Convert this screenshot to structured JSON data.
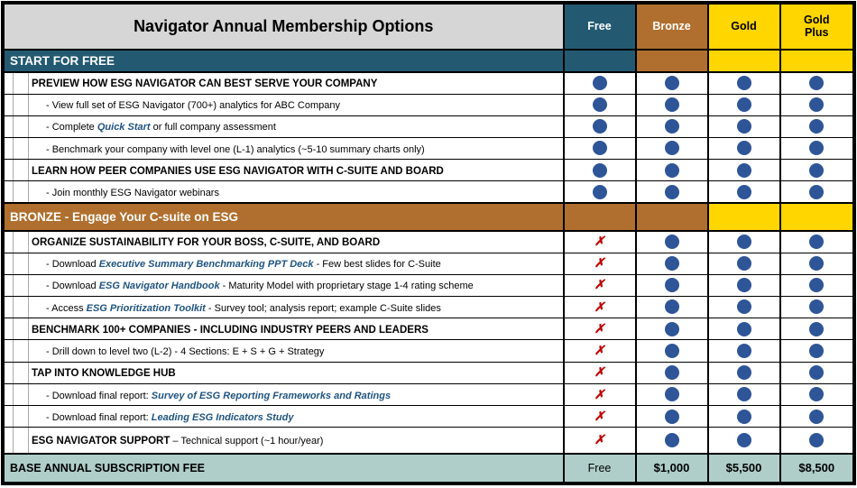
{
  "title": "Navigator Annual Membership Options",
  "colors": {
    "header_gray": "#D6D6D6",
    "teal": "#235A72",
    "bronze": "#B06F2E",
    "gold": "#FFD600",
    "footer_teal": "#AFCECA",
    "dot_blue": "#2E5597",
    "x_red": "#C00000",
    "link_blue": "#1F5380"
  },
  "columns": [
    {
      "label": "Free",
      "bg": "teal",
      "fg": "#FFFFFF"
    },
    {
      "label": "Bronze",
      "bg": "bronze",
      "fg": "#FFFFFF"
    },
    {
      "label": "Gold",
      "bg": "gold",
      "fg": "#000000"
    },
    {
      "label": "Gold Plus",
      "bg": "gold",
      "fg": "#000000"
    }
  ],
  "icons": {
    "included": "dot-circle",
    "excluded_glyph": "✗"
  },
  "rows": [
    {
      "type": "section",
      "label": "START FOR FREE",
      "bg": "teal",
      "cells": [
        "teal",
        "bronze",
        "gold",
        "gold"
      ]
    },
    {
      "type": "item",
      "level": 1,
      "segments": [
        {
          "text": "PREVIEW HOW ESG NAVIGATOR CAN BEST SERVE YOUR COMPANY",
          "style": "bold"
        }
      ],
      "marks": [
        "dot",
        "dot",
        "dot",
        "dot"
      ]
    },
    {
      "type": "item",
      "level": 2,
      "segments": [
        {
          "text": "- View full set of ESG Navigator (700+) analytics for ABC Company",
          "style": "plain"
        }
      ],
      "marks": [
        "dot",
        "dot",
        "dot",
        "dot"
      ]
    },
    {
      "type": "item",
      "level": 2,
      "segments": [
        {
          "text": "- Complete ",
          "style": "plain"
        },
        {
          "text": "Quick Start",
          "style": "blue"
        },
        {
          "text": " or full company assessment",
          "style": "plain"
        }
      ],
      "marks": [
        "dot",
        "dot",
        "dot",
        "dot"
      ]
    },
    {
      "type": "item",
      "level": 2,
      "segments": [
        {
          "text": "- Benchmark your company with level one (L-1) analytics (~5-10 summary charts only)",
          "style": "plain"
        }
      ],
      "marks": [
        "dot",
        "dot",
        "dot",
        "dot"
      ]
    },
    {
      "type": "item",
      "level": 1,
      "segments": [
        {
          "text": "LEARN HOW PEER COMPANIES USE ESG NAVIGATOR WITH C-SUITE AND BOARD",
          "style": "bold"
        }
      ],
      "marks": [
        "dot",
        "dot",
        "dot",
        "dot"
      ]
    },
    {
      "type": "item",
      "level": 2,
      "segments": [
        {
          "text": "- Join monthly ESG Navigator webinars",
          "style": "plain"
        }
      ],
      "marks": [
        "dot",
        "dot",
        "dot",
        "dot"
      ]
    },
    {
      "type": "section",
      "label": "BRONZE - Engage Your C-suite on ESG",
      "bg": "bronze",
      "cells": [
        "bronze",
        "bronze",
        "gold",
        "gold"
      ],
      "tall": true
    },
    {
      "type": "item",
      "level": 1,
      "segments": [
        {
          "text": "ORGANIZE SUSTAINABILITY FOR YOUR BOSS, C-SUITE, AND BOARD",
          "style": "bold"
        }
      ],
      "marks": [
        "x",
        "dot",
        "dot",
        "dot"
      ]
    },
    {
      "type": "item",
      "level": 2,
      "segments": [
        {
          "text": "- Download ",
          "style": "plain"
        },
        {
          "text": "Executive Summary Benchmarking PPT Deck",
          "style": "blue"
        },
        {
          "text": " - Few best slides for C-Suite",
          "style": "plain"
        }
      ],
      "marks": [
        "x",
        "dot",
        "dot",
        "dot"
      ]
    },
    {
      "type": "item",
      "level": 2,
      "segments": [
        {
          "text": "- Download ",
          "style": "plain"
        },
        {
          "text": "ESG Navigator Handbook",
          "style": "blue"
        },
        {
          "text": " - Maturity Model with proprietary stage 1-4 rating scheme",
          "style": "plain"
        }
      ],
      "marks": [
        "x",
        "dot",
        "dot",
        "dot"
      ]
    },
    {
      "type": "item",
      "level": 2,
      "segments": [
        {
          "text": "- Access ",
          "style": "plain"
        },
        {
          "text": "ESG Prioritization Toolkit",
          "style": "blue"
        },
        {
          "text": " - Survey tool; analysis report; example C-Suite slides",
          "style": "plain"
        }
      ],
      "marks": [
        "x",
        "dot",
        "dot",
        "dot"
      ]
    },
    {
      "type": "item",
      "level": 1,
      "segments": [
        {
          "text": "BENCHMARK 100+ COMPANIES - INCLUDING INDUSTRY PEERS AND LEADERS",
          "style": "bold"
        }
      ],
      "marks": [
        "x",
        "dot",
        "dot",
        "dot"
      ]
    },
    {
      "type": "item",
      "level": 2,
      "segments": [
        {
          "text": "- Drill down to level two (L-2) - 4 Sections: E + S + G + Strategy",
          "style": "plain"
        }
      ],
      "marks": [
        "x",
        "dot",
        "dot",
        "dot"
      ]
    },
    {
      "type": "item",
      "level": 1,
      "segments": [
        {
          "text": "TAP INTO KNOWLEDGE HUB",
          "style": "bold"
        }
      ],
      "marks": [
        "x",
        "dot",
        "dot",
        "dot"
      ]
    },
    {
      "type": "item",
      "level": 2,
      "segments": [
        {
          "text": "- Download final report: ",
          "style": "plain"
        },
        {
          "text": "Survey of ESG Reporting Frameworks and Ratings",
          "style": "blue"
        }
      ],
      "marks": [
        "x",
        "dot",
        "dot",
        "dot"
      ]
    },
    {
      "type": "item",
      "level": 2,
      "segments": [
        {
          "text": "- Download final report: ",
          "style": "plain"
        },
        {
          "text": "Leading ESG Indicators Study",
          "style": "blue"
        }
      ],
      "marks": [
        "x",
        "dot",
        "dot",
        "dot"
      ]
    },
    {
      "type": "item",
      "level": 1,
      "segments": [
        {
          "text": "ESG NAVIGATOR SUPPORT",
          "style": "bold"
        },
        {
          "text": " – Technical support (~1 hour/year)",
          "style": "plain"
        }
      ],
      "marks": [
        "x",
        "dot",
        "dot",
        "dot"
      ],
      "tall": true
    }
  ],
  "footer": {
    "label": "BASE ANNUAL SUBSCRIPTION FEE",
    "values": [
      {
        "text": "Free",
        "bold": false
      },
      {
        "text": "$1,000",
        "bold": true
      },
      {
        "text": "$5,500",
        "bold": true
      },
      {
        "text": "$8,500",
        "bold": true
      }
    ]
  }
}
